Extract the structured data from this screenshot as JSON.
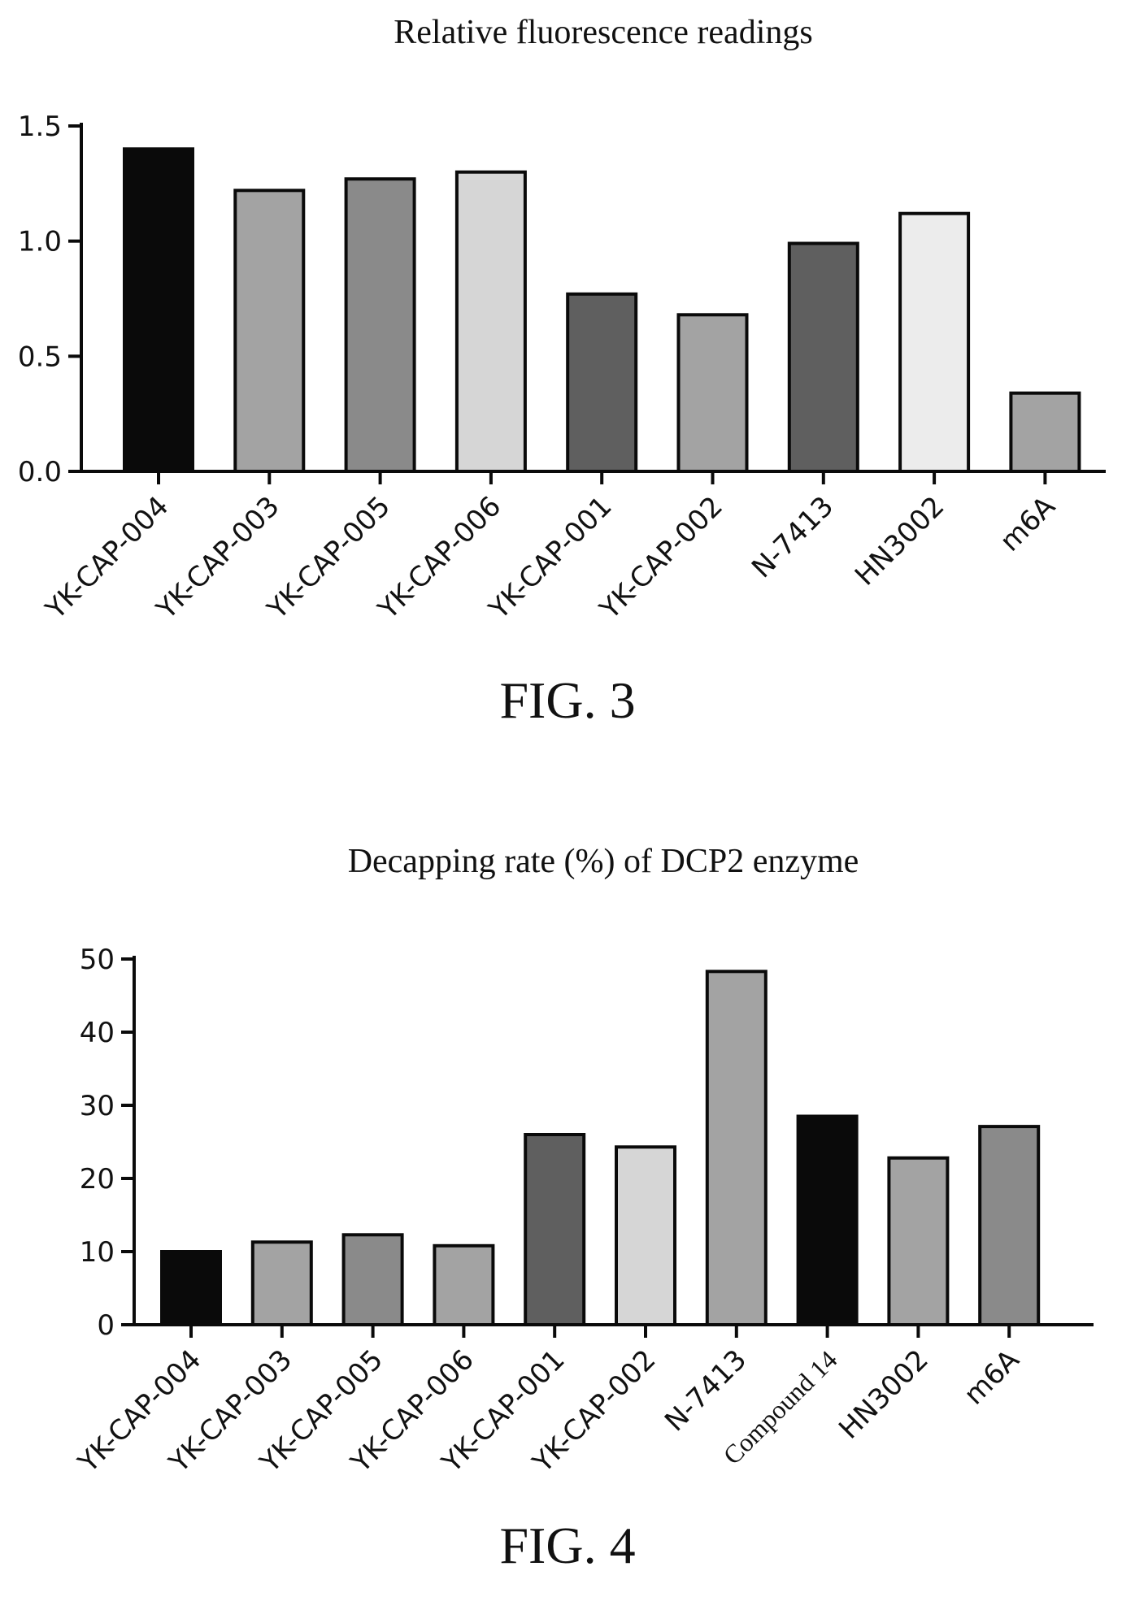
{
  "fills": {
    "black": "#0a0a0a",
    "dark": "#5f5f5f",
    "medium": "#8a8a8a",
    "light": "#a3a3a3",
    "pale": "#d6d6d6",
    "white": "#ececec"
  },
  "chart_data": [
    {
      "type": "bar",
      "title": "Relative fluorescence readings",
      "caption": "FIG. 3",
      "xlabel": "",
      "ylabel": "",
      "ylim": [
        0,
        1.5
      ],
      "yticks": [
        "0.0",
        "0.5",
        "1.0",
        "1.5"
      ],
      "grid": false,
      "categories": [
        "YK-CAP-004",
        "YK-CAP-003",
        "YK-CAP-005",
        "YK-CAP-006",
        "YK-CAP-001",
        "YK-CAP-002",
        "N-7413",
        "HN3002",
        "m6A"
      ],
      "values": [
        1.4,
        1.22,
        1.27,
        1.3,
        0.77,
        0.68,
        0.99,
        1.12,
        0.34
      ],
      "bar_fills": [
        "black",
        "light",
        "medium",
        "pale",
        "dark",
        "light",
        "dark",
        "white",
        "light"
      ]
    },
    {
      "type": "bar",
      "title": "Decapping rate (%) of DCP2 enzyme",
      "caption": "FIG. 4",
      "xlabel": "",
      "ylabel": "",
      "ylim": [
        0,
        50
      ],
      "yticks": [
        "0",
        "10",
        "20",
        "30",
        "40",
        "50"
      ],
      "grid": false,
      "categories": [
        "YK-CAP-004",
        "YK-CAP-003",
        "YK-CAP-005",
        "YK-CAP-006",
        "YK-CAP-001",
        "YK-CAP-002",
        "N-7413",
        "Compound 14",
        "HN3002",
        "m6A"
      ],
      "values": [
        10,
        11.3,
        12.3,
        10.8,
        26,
        24.3,
        48.3,
        28.5,
        22.8,
        27.1
      ],
      "bar_fills": [
        "black",
        "light",
        "medium",
        "light",
        "dark",
        "pale",
        "light",
        "black",
        "light",
        "medium"
      ]
    }
  ]
}
